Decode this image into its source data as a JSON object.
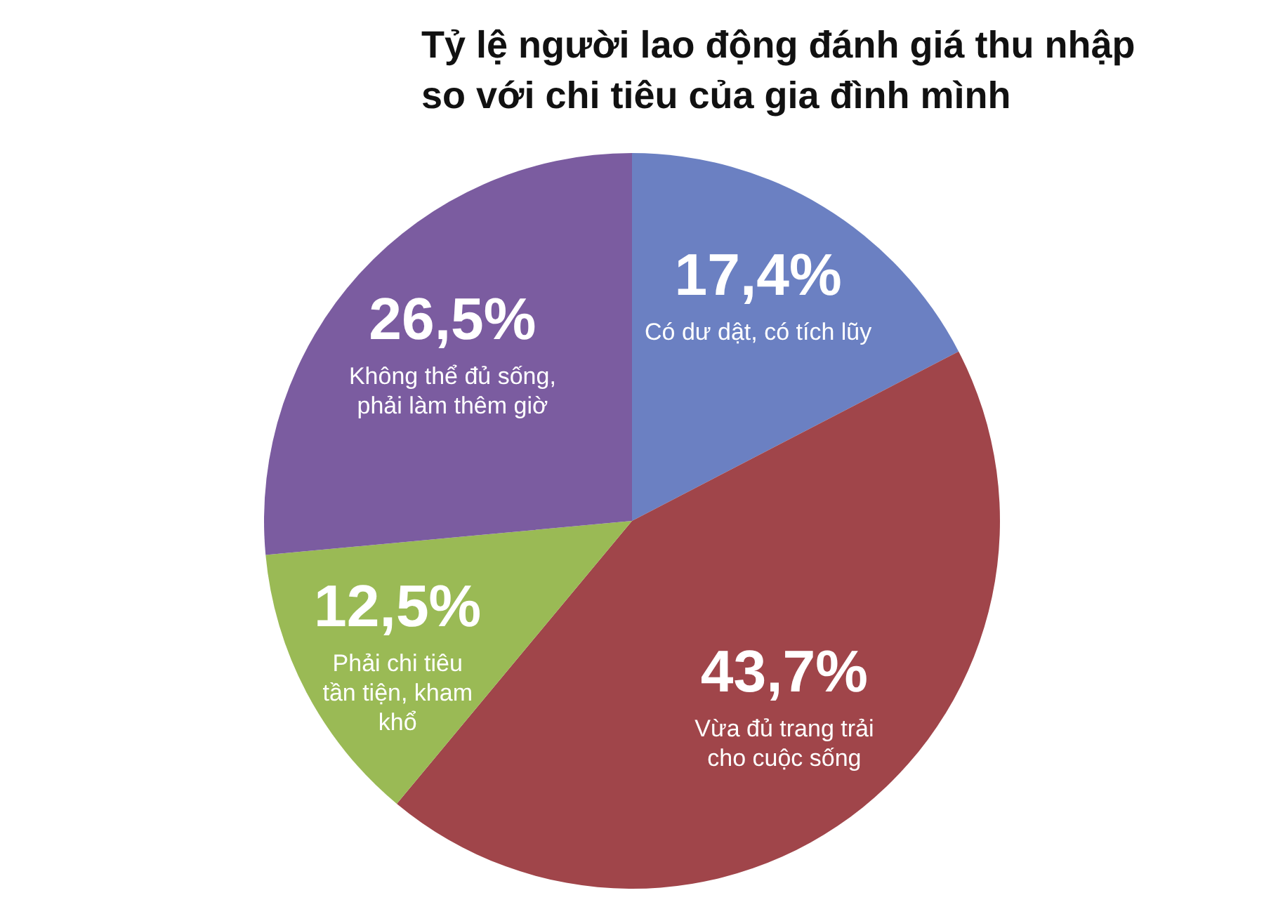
{
  "chart_data": {
    "type": "pie",
    "title": "Tỷ lệ người lao động đánh giá thu nhập so với chi tiêu của gia đình mình",
    "categories": [
      "Có dư dật, có tích lũy",
      "Vừa đủ trang trải cho cuộc sống",
      "Phải chi tiêu tần tiện, kham khổ",
      "Không thể đủ sống, phải làm thêm giờ"
    ],
    "values": [
      17.4,
      43.7,
      12.5,
      26.5
    ],
    "colors": [
      "#6b80c2",
      "#a0454a",
      "#9aba55",
      "#7b5ca0"
    ],
    "value_labels": [
      "17,4%",
      "43,7%",
      "12,5%",
      "26,5%"
    ]
  }
}
